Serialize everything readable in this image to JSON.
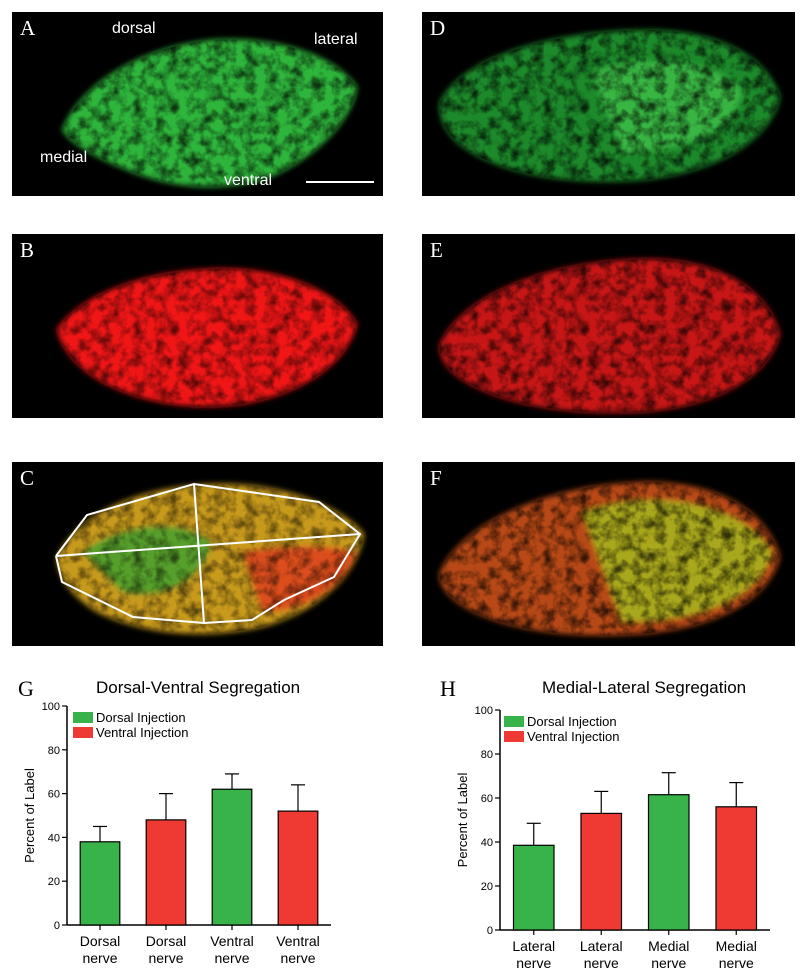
{
  "panels": {
    "A": {
      "letter": "A",
      "dorsal": "dorsal",
      "lateral": "lateral",
      "medial": "medial",
      "ventral": "ventral"
    },
    "B": {
      "letter": "B"
    },
    "C": {
      "letter": "C"
    },
    "D": {
      "letter": "D"
    },
    "E": {
      "letter": "E"
    },
    "F": {
      "letter": "F"
    }
  },
  "colors": {
    "dorsal": "#37b34a",
    "ventral": "#ee3a32",
    "merge": "#c8a018"
  },
  "chart_data": [
    {
      "type": "bar",
      "letter": "G",
      "title": "Dorsal-Ventral Segregation",
      "ylabel": "Percent of Label",
      "xlabel": "",
      "ylim": [
        0,
        100
      ],
      "yticks": [
        0,
        20,
        40,
        60,
        80,
        100
      ],
      "grid": false,
      "legend_position": "top-left",
      "legend": [
        {
          "label": "Dorsal Injection",
          "color": "#37b34a"
        },
        {
          "label": "Ventral Injection",
          "color": "#ee3a32"
        }
      ],
      "categories": [
        "Dorsal nerve",
        "Dorsal nerve",
        "Ventral nerve",
        "Ventral nerve"
      ],
      "category_lines": [
        [
          "Dorsal",
          "nerve"
        ],
        [
          "Dorsal",
          "nerve"
        ],
        [
          "Ventral",
          "nerve"
        ],
        [
          "Ventral",
          "nerve"
        ]
      ],
      "values": [
        38,
        48,
        62,
        52
      ],
      "errors": [
        7,
        12,
        7,
        12
      ],
      "bar_colors": [
        "#37b34a",
        "#ee3a32",
        "#37b34a",
        "#ee3a32"
      ]
    },
    {
      "type": "bar",
      "letter": "H",
      "title": "Medial-Lateral Segregation",
      "ylabel": "Percent of Label",
      "xlabel": "",
      "ylim": [
        0,
        100
      ],
      "yticks": [
        0,
        20,
        40,
        60,
        80,
        100
      ],
      "grid": false,
      "legend_position": "top-left",
      "legend": [
        {
          "label": "Dorsal Injection",
          "color": "#37b34a"
        },
        {
          "label": "Ventral Injection",
          "color": "#ee3a32"
        }
      ],
      "categories": [
        "Lateral nerve",
        "Lateral nerve",
        "Medial nerve",
        "Medial nerve"
      ],
      "category_lines": [
        [
          "Lateral",
          "nerve"
        ],
        [
          "Lateral",
          "nerve"
        ],
        [
          "Medial",
          "nerve"
        ],
        [
          "Medial",
          "nerve"
        ]
      ],
      "values": [
        38.5,
        53,
        61.5,
        56
      ],
      "errors": [
        10,
        10,
        10,
        11
      ],
      "bar_colors": [
        "#37b34a",
        "#ee3a32",
        "#37b34a",
        "#ee3a32"
      ]
    }
  ]
}
